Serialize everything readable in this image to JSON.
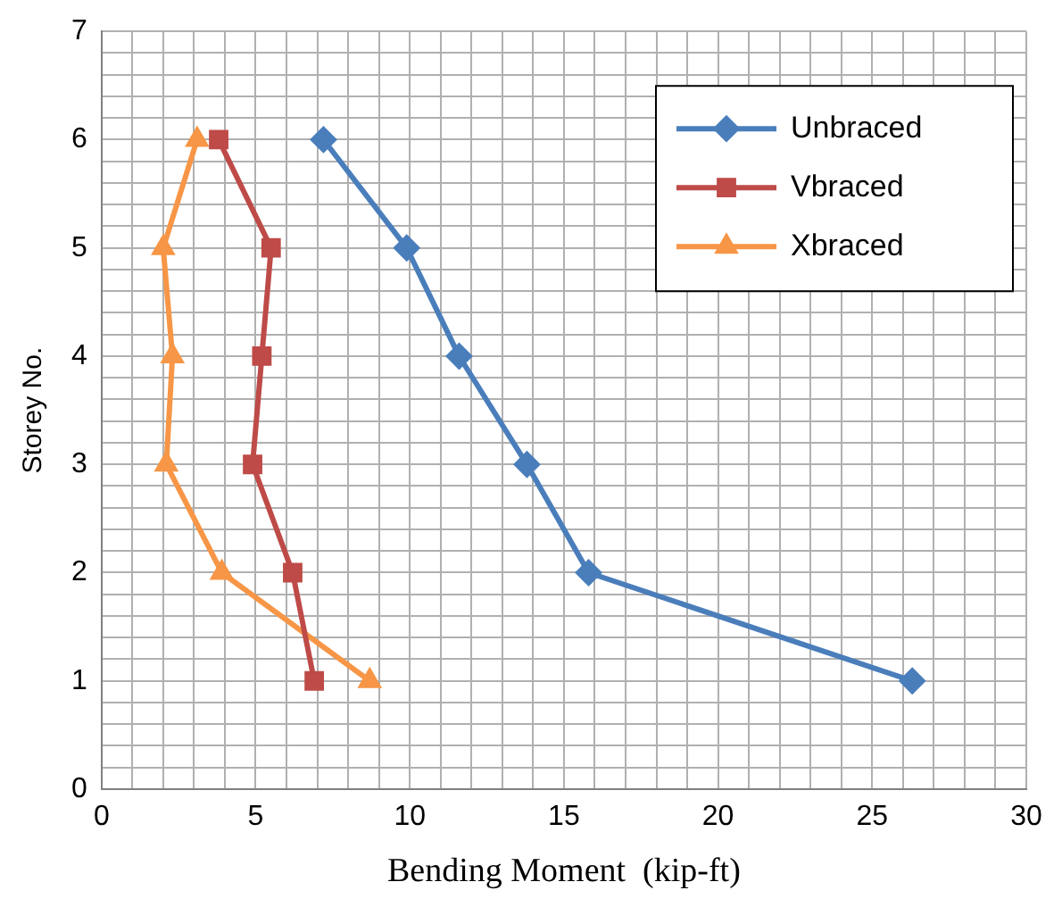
{
  "chart_data": {
    "type": "line",
    "xlabel": "Bending Moment  (kip-ft)",
    "ylabel": "Storey No.",
    "series": [
      {
        "name": "Unbraced",
        "color": "#4a7ebb",
        "marker": "diamond",
        "x": [
          7.2,
          9.9,
          11.6,
          13.8,
          15.8,
          26.3
        ],
        "values": [
          6,
          5,
          4,
          3,
          2,
          1
        ]
      },
      {
        "name": "Vbraced",
        "color": "#be4b48",
        "marker": "square",
        "x": [
          3.8,
          5.5,
          5.2,
          4.9,
          6.2,
          6.9
        ],
        "values": [
          6,
          5,
          4,
          3,
          2,
          1
        ]
      },
      {
        "name": "Xbraced",
        "color": "#f79646",
        "marker": "triangle",
        "x": [
          3.1,
          2.0,
          2.3,
          2.1,
          3.9,
          8.7
        ],
        "values": [
          6,
          5,
          4,
          3,
          2,
          1
        ]
      }
    ],
    "xlim": [
      0,
      30
    ],
    "xticks": [
      0,
      {
        "value": 1,
        "label": null
      },
      {
        "value": 2,
        "label": null
      },
      {
        "value": 3,
        "label": null
      },
      {
        "value": 4,
        "label": null
      },
      5,
      {
        "value": 6,
        "label": null
      },
      {
        "value": 7,
        "label": null
      },
      {
        "value": 8,
        "label": null
      },
      {
        "value": 9,
        "label": null
      },
      10,
      {
        "value": 11,
        "label": null
      },
      {
        "value": 12,
        "label": null
      },
      {
        "value": 13,
        "label": null
      },
      {
        "value": 14,
        "label": null
      },
      15,
      {
        "value": 16,
        "label": null
      },
      {
        "value": 17,
        "label": null
      },
      {
        "value": 18,
        "label": null
      },
      {
        "value": 19,
        "label": null
      },
      20,
      {
        "value": 21,
        "label": null
      },
      {
        "value": 22,
        "label": null
      },
      {
        "value": 23,
        "label": null
      },
      {
        "value": 24,
        "label": null
      },
      25,
      {
        "value": 26,
        "label": null
      },
      {
        "value": 27,
        "label": null
      },
      {
        "value": 28,
        "label": null
      },
      {
        "value": 29,
        "label": null
      },
      30
    ],
    "ylim": [
      0,
      7
    ],
    "yticks": [
      0,
      {
        "value": 0.2,
        "label": null
      },
      {
        "value": 0.4,
        "label": null
      },
      {
        "value": 0.6,
        "label": null
      },
      {
        "value": 0.8,
        "label": null
      },
      1,
      {
        "value": 1.2,
        "label": null
      },
      {
        "value": 1.4,
        "label": null
      },
      {
        "value": 1.6,
        "label": null
      },
      {
        "value": 1.8,
        "label": null
      },
      2,
      {
        "value": 2.2,
        "label": null
      },
      {
        "value": 2.4,
        "label": null
      },
      {
        "value": 2.6,
        "label": null
      },
      {
        "value": 2.8,
        "label": null
      },
      3,
      {
        "value": 3.2,
        "label": null
      },
      {
        "value": 3.4,
        "label": null
      },
      {
        "value": 3.6,
        "label": null
      },
      {
        "value": 3.8,
        "label": null
      },
      4,
      {
        "value": 4.2,
        "label": null
      },
      {
        "value": 4.4,
        "label": null
      },
      {
        "value": 4.6,
        "label": null
      },
      {
        "value": 4.8,
        "label": null
      },
      5,
      {
        "value": 5.2,
        "label": null
      },
      {
        "value": 5.4,
        "label": null
      },
      {
        "value": 5.6,
        "label": null
      },
      {
        "value": 5.8,
        "label": null
      },
      6,
      {
        "value": 6.2,
        "label": null
      },
      {
        "value": 6.4,
        "label": null
      },
      {
        "value": 6.6,
        "label": null
      },
      {
        "value": 6.8,
        "label": null
      },
      7
    ],
    "grid": true,
    "legend": "top right",
    "line_style": "solid"
  }
}
